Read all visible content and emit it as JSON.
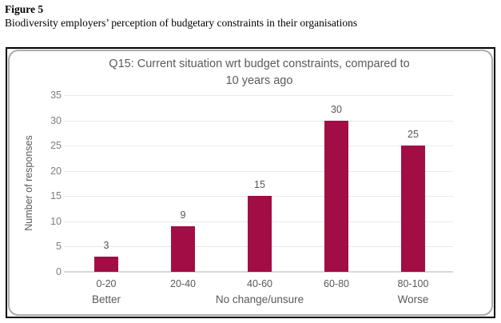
{
  "figure": {
    "label": "Figure 5",
    "caption": "Biodiversity employers’ perception of budgetary constraints in their organisations"
  },
  "chart_data": {
    "type": "bar",
    "title": "Q15: Current situation wrt budget constraints, compared to 10 years ago",
    "title_line1": "Q15: Current situation wrt budget constraints, compared to",
    "title_line2": "10 years ago",
    "categories": [
      "0-20",
      "20-40",
      "40-60",
      "60-80",
      "80-100"
    ],
    "values": [
      3,
      9,
      15,
      30,
      25
    ],
    "group_labels": [
      {
        "text": "Better",
        "slot": 0
      },
      {
        "text": "No change/unsure",
        "slot": 2
      },
      {
        "text": "Worse",
        "slot": 4
      }
    ],
    "xlabel": "",
    "ylabel": "Number of responses",
    "yticks": [
      0,
      5,
      10,
      15,
      20,
      25,
      30,
      35
    ],
    "ylim": [
      0,
      35
    ],
    "grid": true,
    "legend": "none",
    "colors": {
      "bar": "#a30d45",
      "title_text": "#5a5a5a",
      "tick_text": "#7e7e7e",
      "gridline": "#e9e9e9",
      "axis_line": "#d8d8d8",
      "inner_border": "#ababab",
      "outer_border": "#000000"
    }
  }
}
